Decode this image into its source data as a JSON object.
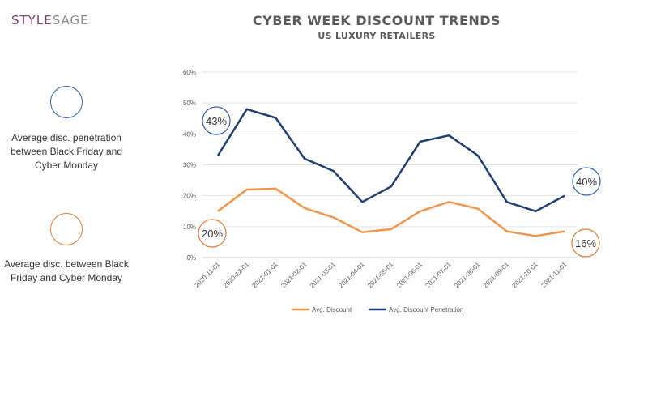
{
  "logo": {
    "part1": "STYLE",
    "part2": "SAGE"
  },
  "header": {
    "title": "CYBER WEEK DISCOUNT TRENDS",
    "subtitle": "US LUXURY RETAILERS"
  },
  "side_legend": {
    "penetration_text": "Average disc. penetration between Black Friday and Cyber Monday",
    "discount_text": "Average disc. between Black Friday and Cyber Monday",
    "penetration_color": "#2e5fa5",
    "discount_color": "#e07b32"
  },
  "chart_data": {
    "type": "line",
    "categories": [
      "2020-11-01",
      "2020-12-01",
      "2021-01-01",
      "2021-02-01",
      "2021-03-01",
      "2021-04-01",
      "2021-05-01",
      "2021-06-01",
      "2021-07-01",
      "2021-08-01",
      "2021-09-01",
      "2021-10-01",
      "2021-11-01"
    ],
    "series": [
      {
        "name": "Avg. Discount",
        "color": "#f0954b",
        "values": [
          15,
          22,
          22.3,
          16,
          13,
          8.2,
          9.2,
          15,
          18,
          15.8,
          8.5,
          7,
          8.5
        ]
      },
      {
        "name": "Avg. Discount Penetration",
        "color": "#1f3f73",
        "values": [
          33,
          48,
          45.2,
          32,
          28,
          18,
          23,
          37.5,
          39.5,
          33,
          18,
          15,
          20
        ]
      }
    ],
    "ylim": [
      0,
      60
    ],
    "yticks": [
      "0%",
      "10%",
      "20%",
      "30%",
      "40%",
      "50%",
      "60%"
    ],
    "grid": true,
    "legend_position": "bottom",
    "annotations": [
      {
        "text": "43%",
        "series": "Avg. Discount Penetration",
        "color": "#2e5fa5",
        "at": "start"
      },
      {
        "text": "20%",
        "series": "Avg. Discount",
        "color": "#e07b32",
        "at": "start"
      },
      {
        "text": "40%",
        "series": "Avg. Discount Penetration",
        "color": "#2e5fa5",
        "at": "end"
      },
      {
        "text": "16%",
        "series": "Avg. Discount",
        "color": "#e07b32",
        "at": "end"
      }
    ]
  }
}
